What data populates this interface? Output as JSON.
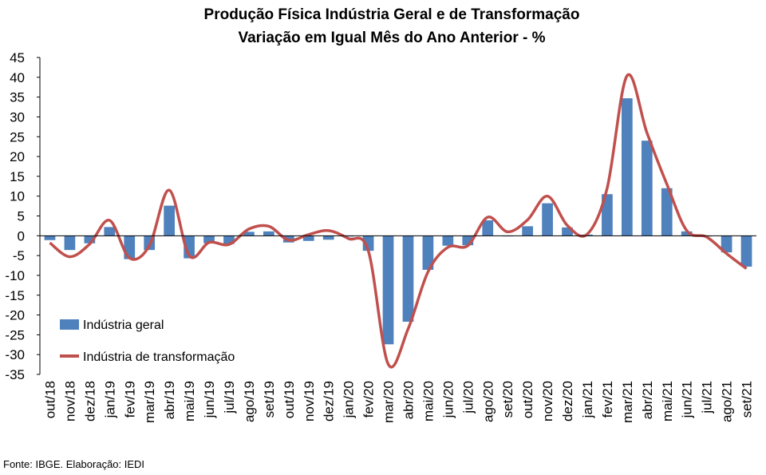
{
  "chart_data": {
    "type": "bar",
    "title": "Produção Física Indústria Geral e de Transformação",
    "subtitle": "Variação em Igual Mês do Ano Anterior - %",
    "categories": [
      "out/18",
      "nov/18",
      "dez/18",
      "jan/19",
      "fev/19",
      "mar/19",
      "abr/19",
      "mai/19",
      "jun/19",
      "jul/19",
      "ago/19",
      "set/19",
      "out/19",
      "nov/19",
      "dez/19",
      "jan/20",
      "fev/20",
      "mar/20",
      "abr/20",
      "mai/20",
      "jun/20",
      "jul/20",
      "ago/20",
      "set/20",
      "out/20",
      "nov/20",
      "dez/20",
      "jan/21",
      "fev/21",
      "mar/21",
      "abr/21",
      "mai/21",
      "jun/21",
      "jul/21",
      "ago/21",
      "set/21"
    ],
    "series": [
      {
        "name": "Indústria geral",
        "kind": "bar",
        "color": "#4f81bd",
        "values": [
          -1.1,
          -3.6,
          -1.9,
          2.2,
          -5.9,
          -3.6,
          7.6,
          -5.7,
          -1.9,
          -2.1,
          1.0,
          1.1,
          -1.7,
          -1.3,
          -1.0,
          -0.2,
          -3.8,
          -27.4,
          -21.7,
          -8.6,
          -2.5,
          -2.4,
          3.9,
          0.0,
          2.4,
          8.2,
          2.1,
          0.3,
          10.5,
          34.7,
          24.0,
          12.0,
          1.1,
          0.0,
          -4.2,
          -7.8
        ]
      },
      {
        "name": "Indústria de transformação",
        "kind": "line",
        "color": "#c0504d",
        "values": [
          -1.8,
          -5.3,
          -2.1,
          3.9,
          -5.6,
          -2.5,
          11.5,
          -5.0,
          -1.7,
          -2.2,
          1.7,
          2.4,
          -1.1,
          0.3,
          1.3,
          -0.7,
          -3.8,
          -32.4,
          -23.5,
          -9.1,
          -2.9,
          -2.5,
          4.7,
          1.0,
          4.0,
          10.0,
          2.6,
          0.4,
          12.0,
          40.4,
          26.0,
          13.0,
          1.3,
          -0.3,
          -4.5,
          -8.3
        ]
      }
    ],
    "ylim": [
      -35,
      45
    ],
    "yticks": [
      "45",
      "40",
      "35",
      "30",
      "25",
      "20",
      "15",
      "10",
      "5",
      "0",
      "-5",
      "-10",
      "-15",
      "-20",
      "-25",
      "-30",
      "-35"
    ],
    "grid": false,
    "legend_position": "bottom-left",
    "xlabel": "",
    "ylabel": ""
  },
  "source": "Fonte: IBGE. Elaboração: IEDI"
}
